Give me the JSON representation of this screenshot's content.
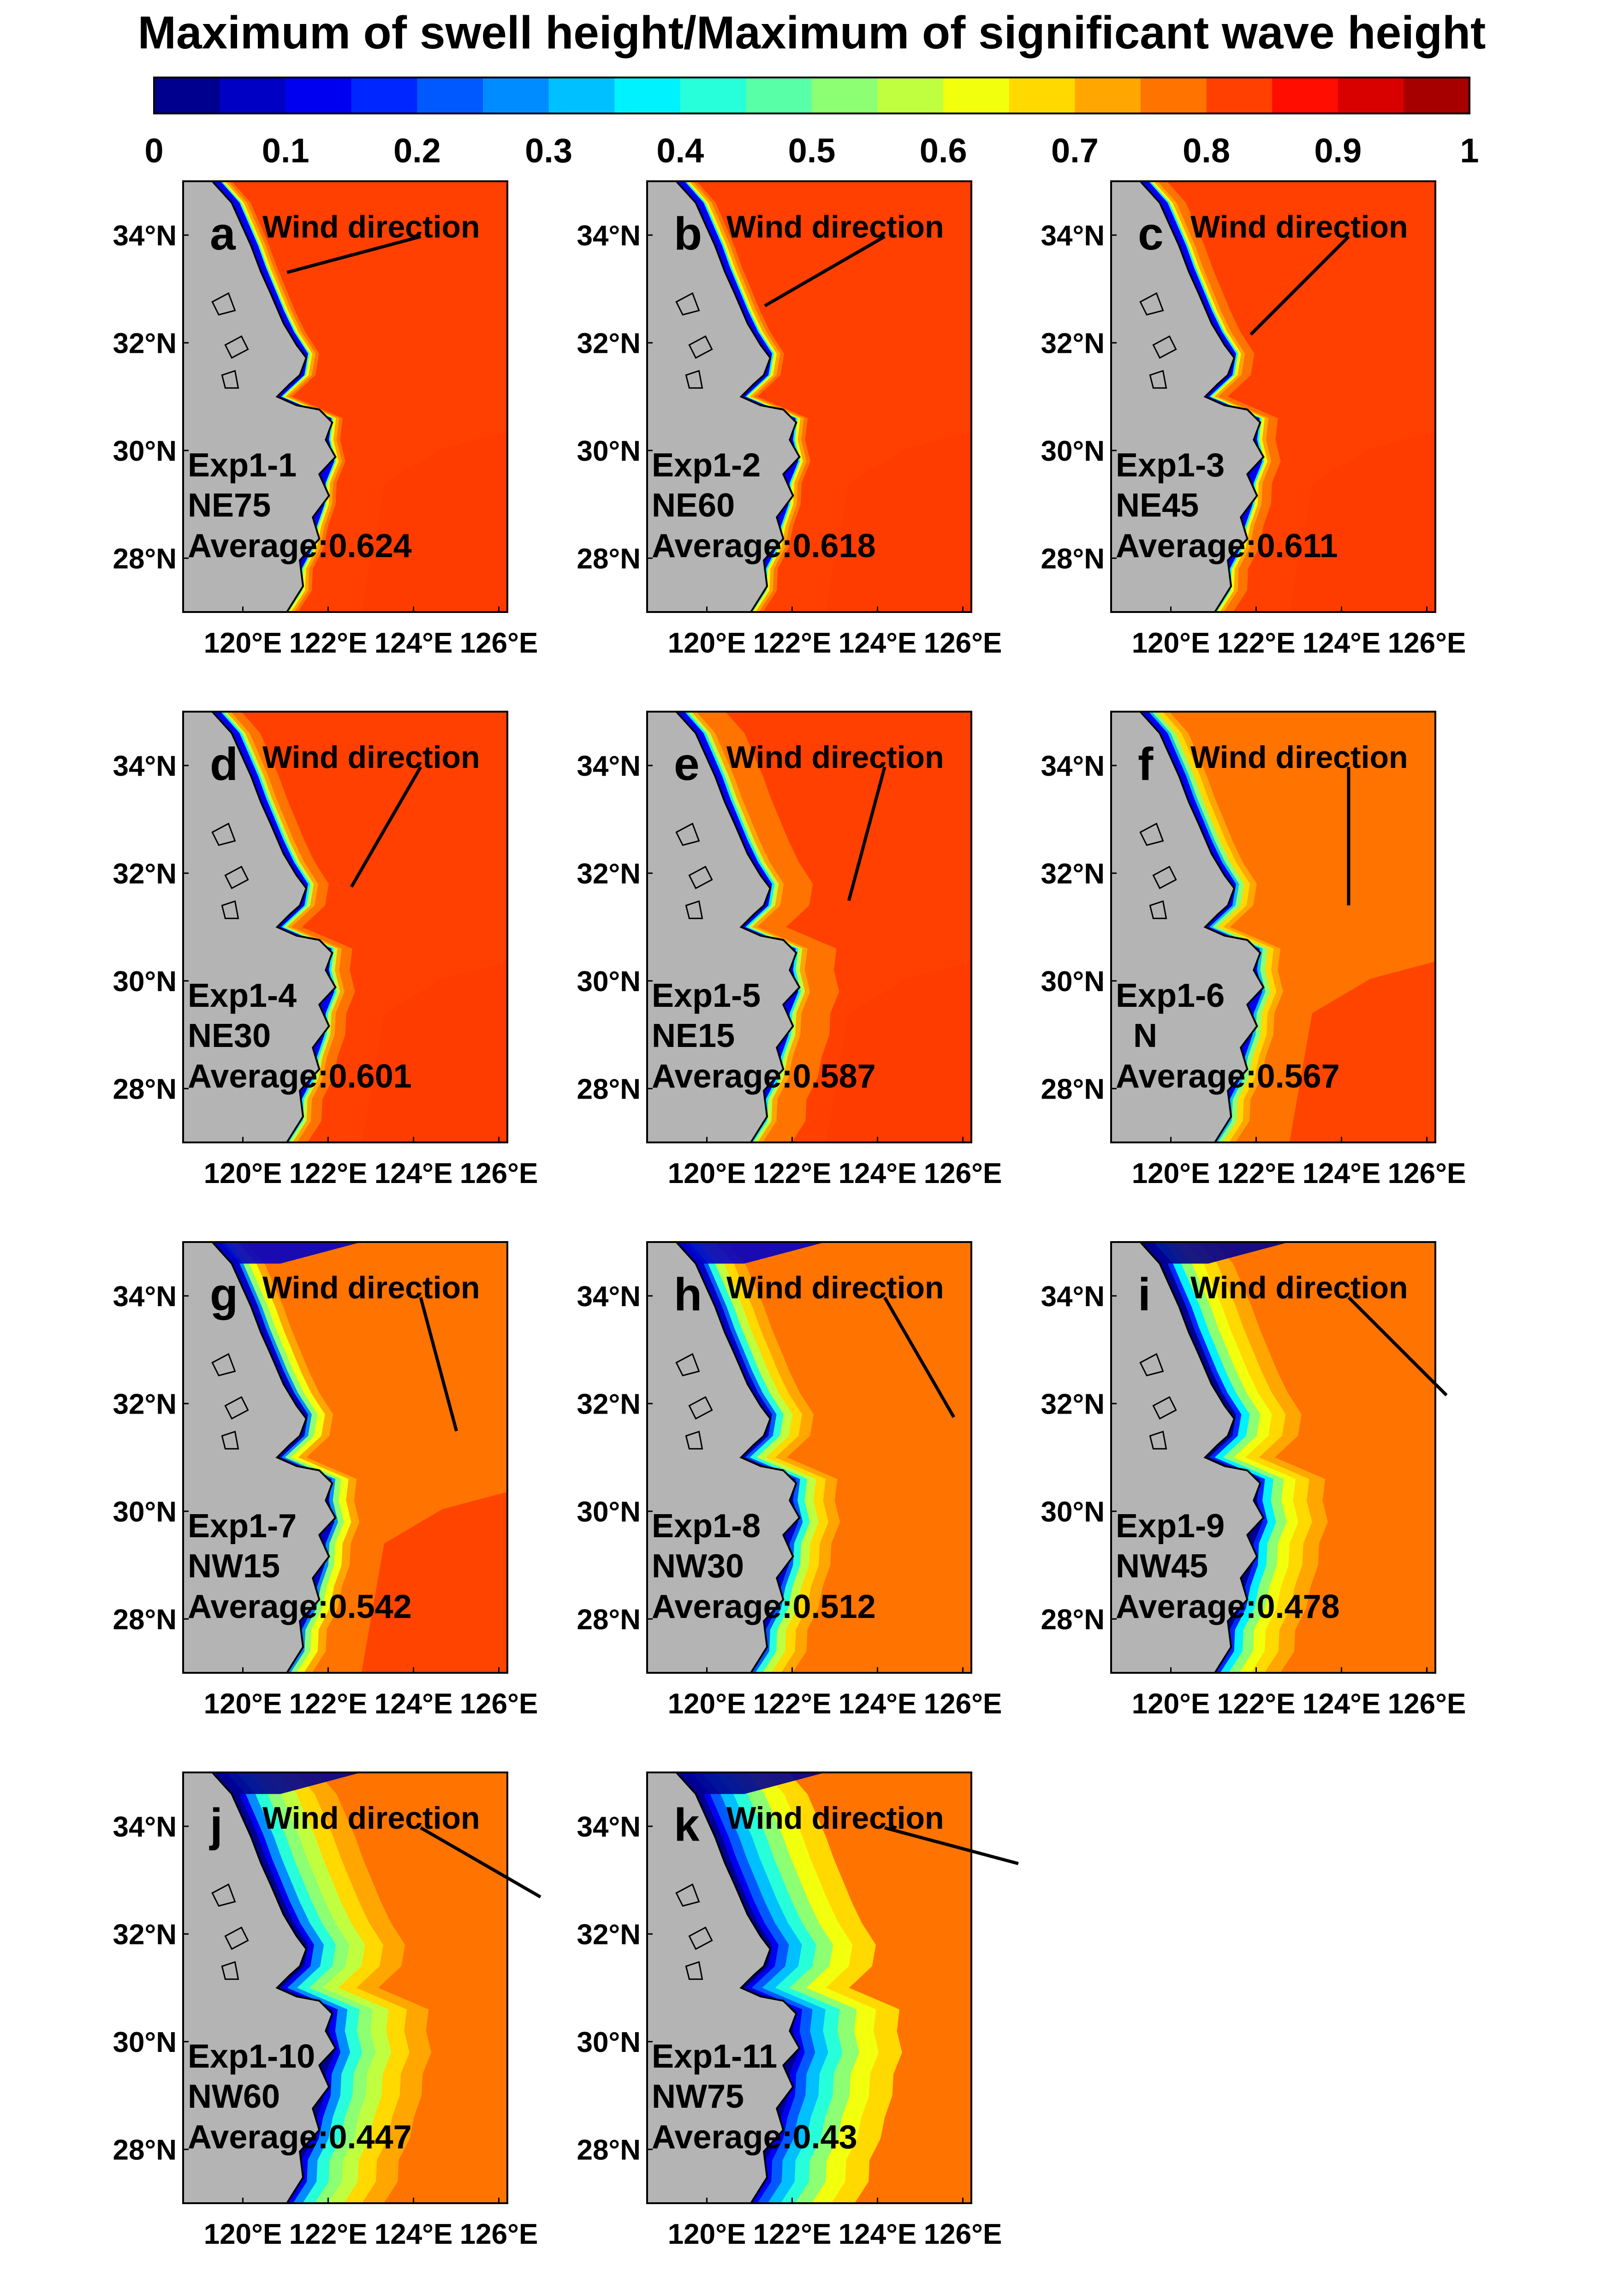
{
  "title": "Maximum of swell height/Maximum of significant wave height",
  "colorbar": {
    "min": 0,
    "max": 1,
    "levels": 20,
    "ticks": [
      "0",
      "0.1",
      "0.2",
      "0.3",
      "0.4",
      "0.5",
      "0.6",
      "0.7",
      "0.8",
      "0.9",
      "1"
    ],
    "colors": [
      "#00008f",
      "#0000c4",
      "#0000f0",
      "#0026ff",
      "#0059ff",
      "#008cff",
      "#00c0ff",
      "#00f2ff",
      "#26ffd9",
      "#59ffa6",
      "#8cff73",
      "#c0ff40",
      "#f2ff0d",
      "#ffd900",
      "#ffa600",
      "#ff7300",
      "#ff4000",
      "#ff0d00",
      "#d90000",
      "#a60000"
    ]
  },
  "axes": {
    "lat_ticks": [
      "34°N",
      "32°N",
      "30°N",
      "28°N"
    ],
    "lon_ticks": [
      "120°E",
      "122°E",
      "124°E",
      "126°E"
    ]
  },
  "wind_label": "Wind direction",
  "colors": {
    "land": "#b4b4b4",
    "coast": "#000000",
    "sea_high": "#ff6a00",
    "sea_max": "#ff3c00"
  },
  "chart_data": {
    "type": "heatmap",
    "title": "Maximum of swell height/Maximum of significant wave height",
    "value_range": [
      0,
      1
    ],
    "lon_range_degE": [
      118.6,
      126.2
    ],
    "lat_range_degN": [
      27.0,
      35.0
    ],
    "panels": [
      {
        "letter": "a",
        "exp": "Exp1-1",
        "wind": "NE75",
        "average_label": "Average:0.624",
        "average": 0.624,
        "wind_from_deg": 75
      },
      {
        "letter": "b",
        "exp": "Exp1-2",
        "wind": "NE60",
        "average_label": "Average:0.618",
        "average": 0.618,
        "wind_from_deg": 60
      },
      {
        "letter": "c",
        "exp": "Exp1-3",
        "wind": "NE45",
        "average_label": "Average:0.611",
        "average": 0.611,
        "wind_from_deg": 45
      },
      {
        "letter": "d",
        "exp": "Exp1-4",
        "wind": "NE30",
        "average_label": "Average:0.601",
        "average": 0.601,
        "wind_from_deg": 30
      },
      {
        "letter": "e",
        "exp": "Exp1-5",
        "wind": "NE15",
        "average_label": "Average:0.587",
        "average": 0.587,
        "wind_from_deg": 15
      },
      {
        "letter": "f",
        "exp": "Exp1-6",
        "wind": "N",
        "average_label": "Average:0.567",
        "average": 0.567,
        "wind_from_deg": 0
      },
      {
        "letter": "g",
        "exp": "Exp1-7",
        "wind": "NW15",
        "average_label": "Average:0.542",
        "average": 0.542,
        "wind_from_deg": -15
      },
      {
        "letter": "h",
        "exp": "Exp1-8",
        "wind": "NW30",
        "average_label": "Average:0.512",
        "average": 0.512,
        "wind_from_deg": -30
      },
      {
        "letter": "i",
        "exp": "Exp1-9",
        "wind": "NW45",
        "average_label": "Average:0.478",
        "average": 0.478,
        "wind_from_deg": -45
      },
      {
        "letter": "j",
        "exp": "Exp1-10",
        "wind": "NW60",
        "average_label": "Average:0.447",
        "average": 0.447,
        "wind_from_deg": -60
      },
      {
        "letter": "k",
        "exp": "Exp1-11",
        "wind": "NW75",
        "average_label": "Average:0.43",
        "average": 0.43,
        "wind_from_deg": -75
      }
    ]
  }
}
